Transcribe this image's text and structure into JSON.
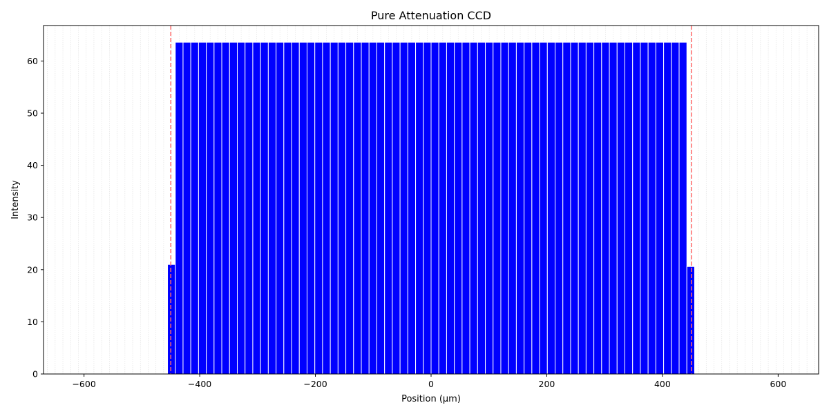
{
  "chart_data": {
    "type": "bar",
    "title": "Pure Attenuation CCD",
    "xlabel": "Position (µm)",
    "ylabel": "Intensity",
    "xlim": [
      -670,
      670
    ],
    "ylim": [
      0,
      66.8
    ],
    "xticks": [
      -600,
      -400,
      -200,
      0,
      200,
      400,
      600
    ],
    "yticks": [
      0,
      10,
      20,
      30,
      40,
      50,
      60
    ],
    "grid": true,
    "bar_width": 13.4,
    "bar_color": "#0000ff",
    "bar_edge_color": "#ffffff",
    "series": [
      {
        "x": [
          -448.9,
          -435.5,
          -422.1,
          -408.7,
          -395.3,
          -381.9,
          -368.5,
          -355.1,
          -341.7,
          -328.3,
          -314.9,
          -301.5,
          -288.1,
          -274.7,
          -261.3,
          -247.9,
          -234.5,
          -221.1,
          -207.7,
          -194.3,
          -180.9,
          -167.5,
          -154.1,
          -140.7,
          -127.3,
          -113.9,
          -100.5,
          -87.1,
          -73.7,
          -60.3,
          -46.9,
          -33.5,
          -20.1,
          -6.7,
          6.7,
          20.1,
          33.5,
          46.9,
          60.3,
          73.7,
          87.1,
          100.5,
          113.9,
          127.3,
          140.7,
          154.1,
          167.5,
          180.9,
          194.3,
          207.7,
          221.1,
          234.5,
          247.9,
          261.3,
          274.7,
          288.1,
          301.5,
          314.9,
          328.3,
          341.7,
          355.1,
          368.5,
          381.9,
          395.3,
          408.7,
          422.1,
          435.5,
          448.9
        ],
        "values": [
          21,
          63.6,
          63.6,
          63.6,
          63.6,
          63.6,
          63.6,
          63.6,
          63.6,
          63.6,
          63.6,
          63.6,
          63.6,
          63.6,
          63.6,
          63.6,
          63.6,
          63.6,
          63.6,
          63.6,
          63.6,
          63.6,
          63.6,
          63.6,
          63.6,
          63.6,
          63.6,
          63.6,
          63.6,
          63.6,
          63.6,
          63.6,
          63.6,
          63.6,
          63.6,
          63.6,
          63.6,
          63.6,
          63.6,
          63.6,
          63.6,
          63.6,
          63.6,
          63.6,
          63.6,
          63.6,
          63.6,
          63.6,
          63.6,
          63.6,
          63.6,
          63.6,
          63.6,
          63.6,
          63.6,
          63.6,
          63.6,
          63.6,
          63.6,
          63.6,
          63.6,
          63.6,
          63.6,
          63.6,
          63.6,
          63.6,
          63.6,
          20.6
        ]
      }
    ],
    "reference_lines": [
      {
        "x": -450,
        "color": "#ff6b6b",
        "style": "dashed"
      },
      {
        "x": 450,
        "color": "#ff6b6b",
        "style": "dashed"
      }
    ]
  }
}
